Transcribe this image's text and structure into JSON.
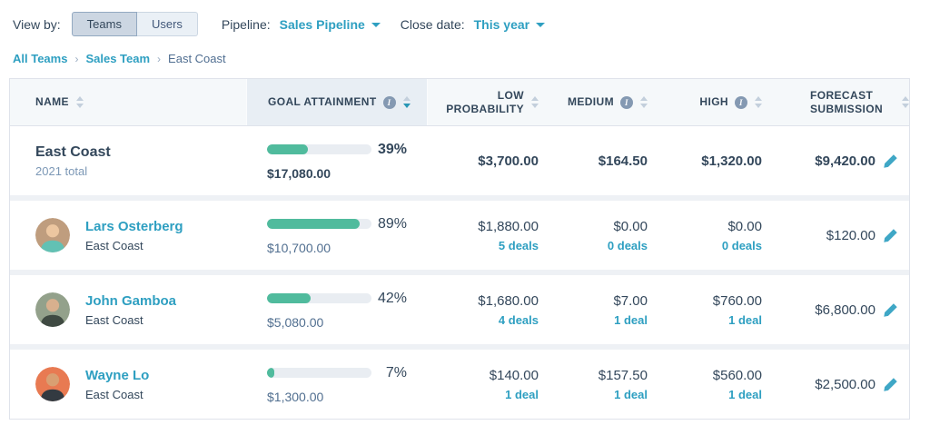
{
  "toolbar": {
    "view_by_label": "View by:",
    "teams_label": "Teams",
    "users_label": "Users",
    "pipeline_label": "Pipeline:",
    "pipeline_value": "Sales Pipeline",
    "close_date_label": "Close date:",
    "close_date_value": "This year"
  },
  "breadcrumb": {
    "links": [
      "All Teams",
      "Sales Team"
    ],
    "current": "East Coast",
    "separator": "›"
  },
  "table": {
    "columns": [
      {
        "label": "NAME",
        "align": "left",
        "info": false,
        "sorted": null
      },
      {
        "label": "GOAL ATTAINMENT",
        "align": "left",
        "info": true,
        "sorted": "desc"
      },
      {
        "label": "LOW PROBABILITY",
        "align": "right",
        "info": false,
        "sorted": null
      },
      {
        "label": "MEDIUM",
        "align": "right",
        "info": true,
        "sorted": null
      },
      {
        "label": "HIGH",
        "align": "right",
        "info": true,
        "sorted": null
      },
      {
        "label": "FORECAST SUBMISSION",
        "align": "left",
        "info": false,
        "sorted": null
      }
    ],
    "rows": [
      {
        "name": "East Coast",
        "subtitle": "2021 total",
        "is_total": true,
        "avatar": null,
        "goal": {
          "percent_label": "39%",
          "percent": 39,
          "amount": "$17,080.00"
        },
        "low": {
          "amount": "$3,700.00",
          "deals": null
        },
        "medium": {
          "amount": "$164.50",
          "deals": null
        },
        "high": {
          "amount": "$1,320.00",
          "deals": null
        },
        "forecast": "$9,420.00"
      },
      {
        "name": "Lars Osterberg",
        "subtitle": "East Coast",
        "is_total": false,
        "avatar": {
          "bg": "#bf9d7e",
          "skin": "#ecc6a0",
          "shirt": "#62c1b4"
        },
        "goal": {
          "percent_label": "89%",
          "percent": 89,
          "amount": "$10,700.00"
        },
        "low": {
          "amount": "$1,880.00",
          "deals": "5 deals"
        },
        "medium": {
          "amount": "$0.00",
          "deals": "0 deals"
        },
        "high": {
          "amount": "$0.00",
          "deals": "0 deals"
        },
        "forecast": "$120.00"
      },
      {
        "name": "John Gamboa",
        "subtitle": "East Coast",
        "is_total": false,
        "avatar": {
          "bg": "#93a18b",
          "skin": "#d8b08e",
          "shirt": "#3f4a42"
        },
        "goal": {
          "percent_label": "42%",
          "percent": 42,
          "amount": "$5,080.00"
        },
        "low": {
          "amount": "$1,680.00",
          "deals": "4 deals"
        },
        "medium": {
          "amount": "$7.00",
          "deals": "1 deal"
        },
        "high": {
          "amount": "$760.00",
          "deals": "1 deal"
        },
        "forecast": "$6,800.00"
      },
      {
        "name": "Wayne Lo",
        "subtitle": "East Coast",
        "is_total": false,
        "avatar": {
          "bg": "#e87a52",
          "skin": "#d99f72",
          "shirt": "#333a41"
        },
        "goal": {
          "percent_label": "7%",
          "percent": 7,
          "amount": "$1,300.00"
        },
        "low": {
          "amount": "$140.00",
          "deals": "1 deal"
        },
        "medium": {
          "amount": "$157.50",
          "deals": "1 deal"
        },
        "high": {
          "amount": "$560.00",
          "deals": "1 deal"
        },
        "forecast": "$2,500.00"
      }
    ]
  },
  "colors": {
    "link_teal": "#2e9fc1",
    "progress_green": "#50bb9d",
    "text_dark": "#33475b",
    "header_bg": "#f5f8fa",
    "sorted_header_bg": "#e8eef4",
    "pencil_teal": "#3fa7c6"
  },
  "chart_data": {
    "type": "bar",
    "title": "Goal attainment",
    "categories": [
      "East Coast (2021 total)",
      "Lars Osterberg",
      "John Gamboa",
      "Wayne Lo"
    ],
    "values": [
      39,
      89,
      42,
      7
    ],
    "value_labels": [
      "$17,080.00",
      "$10,700.00",
      "$5,080.00",
      "$1,300.00"
    ],
    "ylim": [
      0,
      100
    ]
  }
}
